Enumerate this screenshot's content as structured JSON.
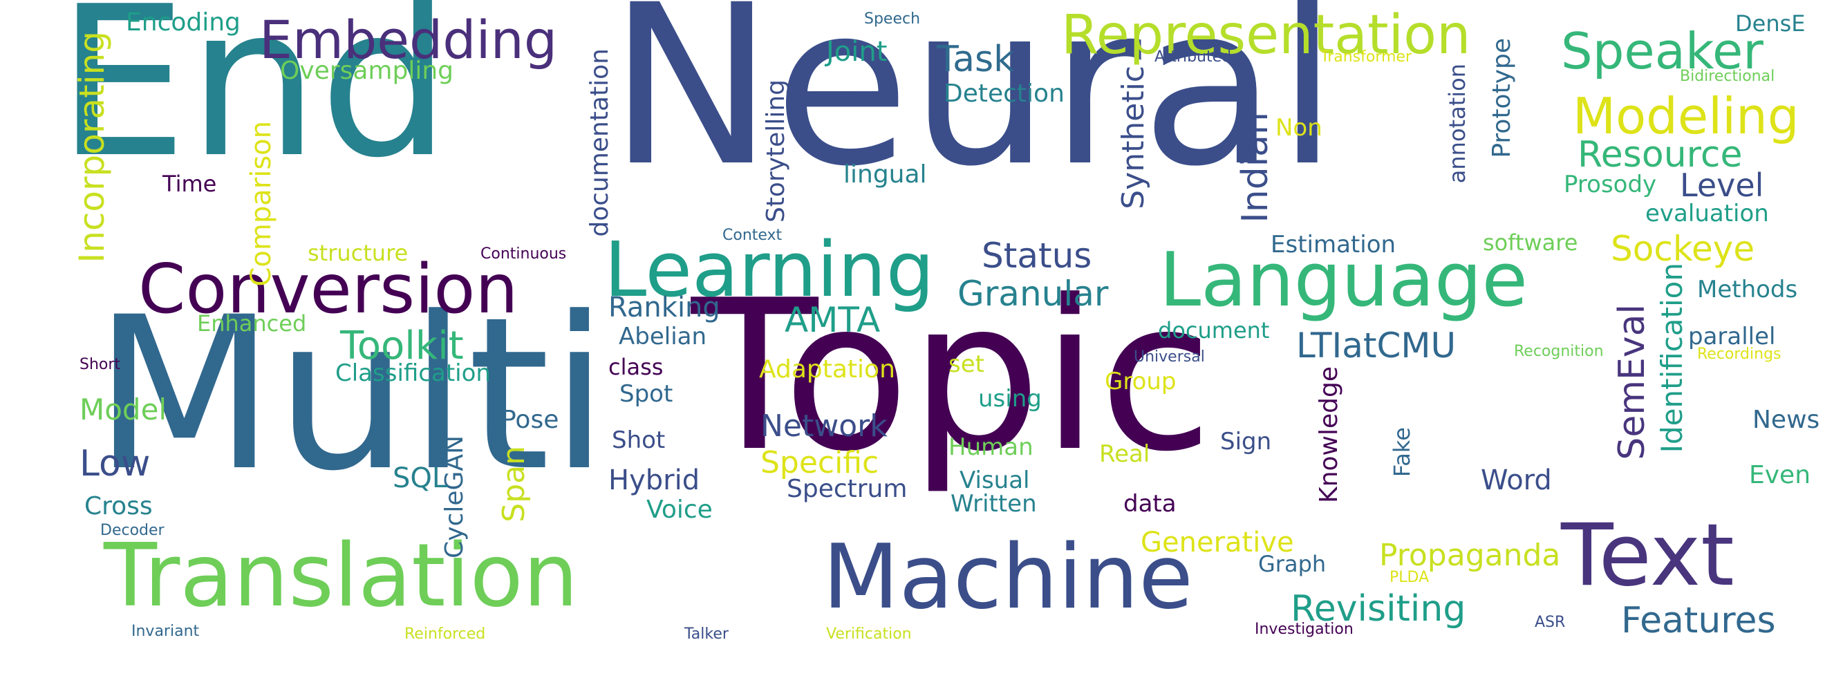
{
  "word_cloud": {
    "palette": {
      "dark_purple": "#440154",
      "indigo": "#3b4e8a",
      "slate_blue": "#31688e",
      "teal": "#26828e",
      "sea_green": "#1f9e89",
      "green": "#35b779",
      "light_green": "#6ece58",
      "lime": "#b5de2b",
      "yellow": "#dde318"
    },
    "words": [
      "Topic",
      "Multi",
      "Neural",
      "End",
      "Translation",
      "Machine",
      "Text",
      "Language",
      "Learning",
      "Conversion",
      "Representation",
      "Embedding",
      "Speaker",
      "Modeling",
      "Task",
      "Resource",
      "Sockeye",
      "Incorporating",
      "Toolkit",
      "AMTA",
      "Granular",
      "Status",
      "Features",
      "Revisiting",
      "LTIatCMU",
      "SemEval",
      "Indian",
      "Synthetic",
      "Identification",
      "Knowledge",
      "Low",
      "Model",
      "Level",
      "Comparison",
      "Encoding",
      "Oversampling",
      "Joint",
      "Detection",
      "documentation",
      "Storytelling",
      "Ranking",
      "Network",
      "Specific",
      "Hybrid",
      "Voice",
      "Spectrum",
      "Span",
      "CycleGAN",
      "Pose",
      "SQL",
      "Propaganda",
      "Generative",
      "Word",
      "Prototype",
      "annotation",
      "Prosody",
      "evaluation",
      "Methods",
      "parallel",
      "News",
      "Even",
      "lingual",
      "Estimation",
      "software",
      "document",
      "Group",
      "Real",
      "data",
      "Written",
      "Visual",
      "Human",
      "using",
      "set",
      "Adaptation",
      "class",
      "Spot",
      "Shot",
      "Abelian",
      "Classification",
      "Cross",
      "Time",
      "structure",
      "Enhanced",
      "Non",
      "Graph",
      "Sign",
      "Fake",
      "DensE",
      "Bidirectional",
      "Speech",
      "Attributed",
      "Transformer",
      "Continuous",
      "Context",
      "Universal",
      "Recognition",
      "Recordings",
      "Short",
      "Decoder",
      "Invariant",
      "Reinforced",
      "Talker",
      "Verification",
      "Investigation",
      "ASR",
      "PLDA"
    ]
  }
}
